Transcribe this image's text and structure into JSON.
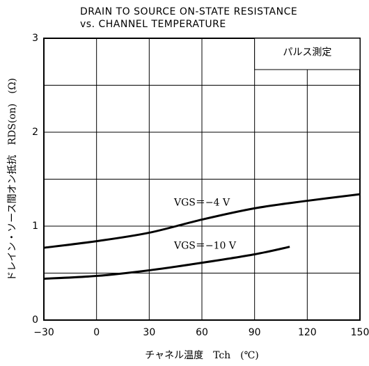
{
  "chart_data": {
    "type": "line",
    "title": [
      "DRAIN TO SOURCE ON-STATE RESISTANCE",
      "vs. CHANNEL TEMPERATURE"
    ],
    "xlabel": "チャネル温度　Tch　(℃)",
    "ylabel": "ドレイン・ソース間オン抵抗　RDS(on)　(Ω)",
    "annotation": "パルス測定",
    "xlim": [
      -30,
      150
    ],
    "xticks": [
      {
        "value": -30,
        "label": "−30"
      },
      0,
      30,
      60,
      90,
      120,
      150
    ],
    "ylim": [
      0,
      3
    ],
    "yticks": [
      0,
      1,
      2,
      3
    ],
    "yminorticks": [
      0.5,
      1.5,
      2.5
    ],
    "grid": true,
    "series": [
      {
        "name": "VGS＝−4 V",
        "color": "#000000",
        "x": [
          -30,
          0,
          30,
          60,
          90,
          120,
          150
        ],
        "values": [
          0.77,
          0.84,
          0.93,
          1.07,
          1.19,
          1.27,
          1.34
        ]
      },
      {
        "name": "VGS＝−10 V",
        "color": "#000000",
        "x": [
          -30,
          0,
          30,
          60,
          90,
          110
        ],
        "values": [
          0.44,
          0.47,
          0.53,
          0.61,
          0.7,
          0.78
        ]
      }
    ]
  }
}
